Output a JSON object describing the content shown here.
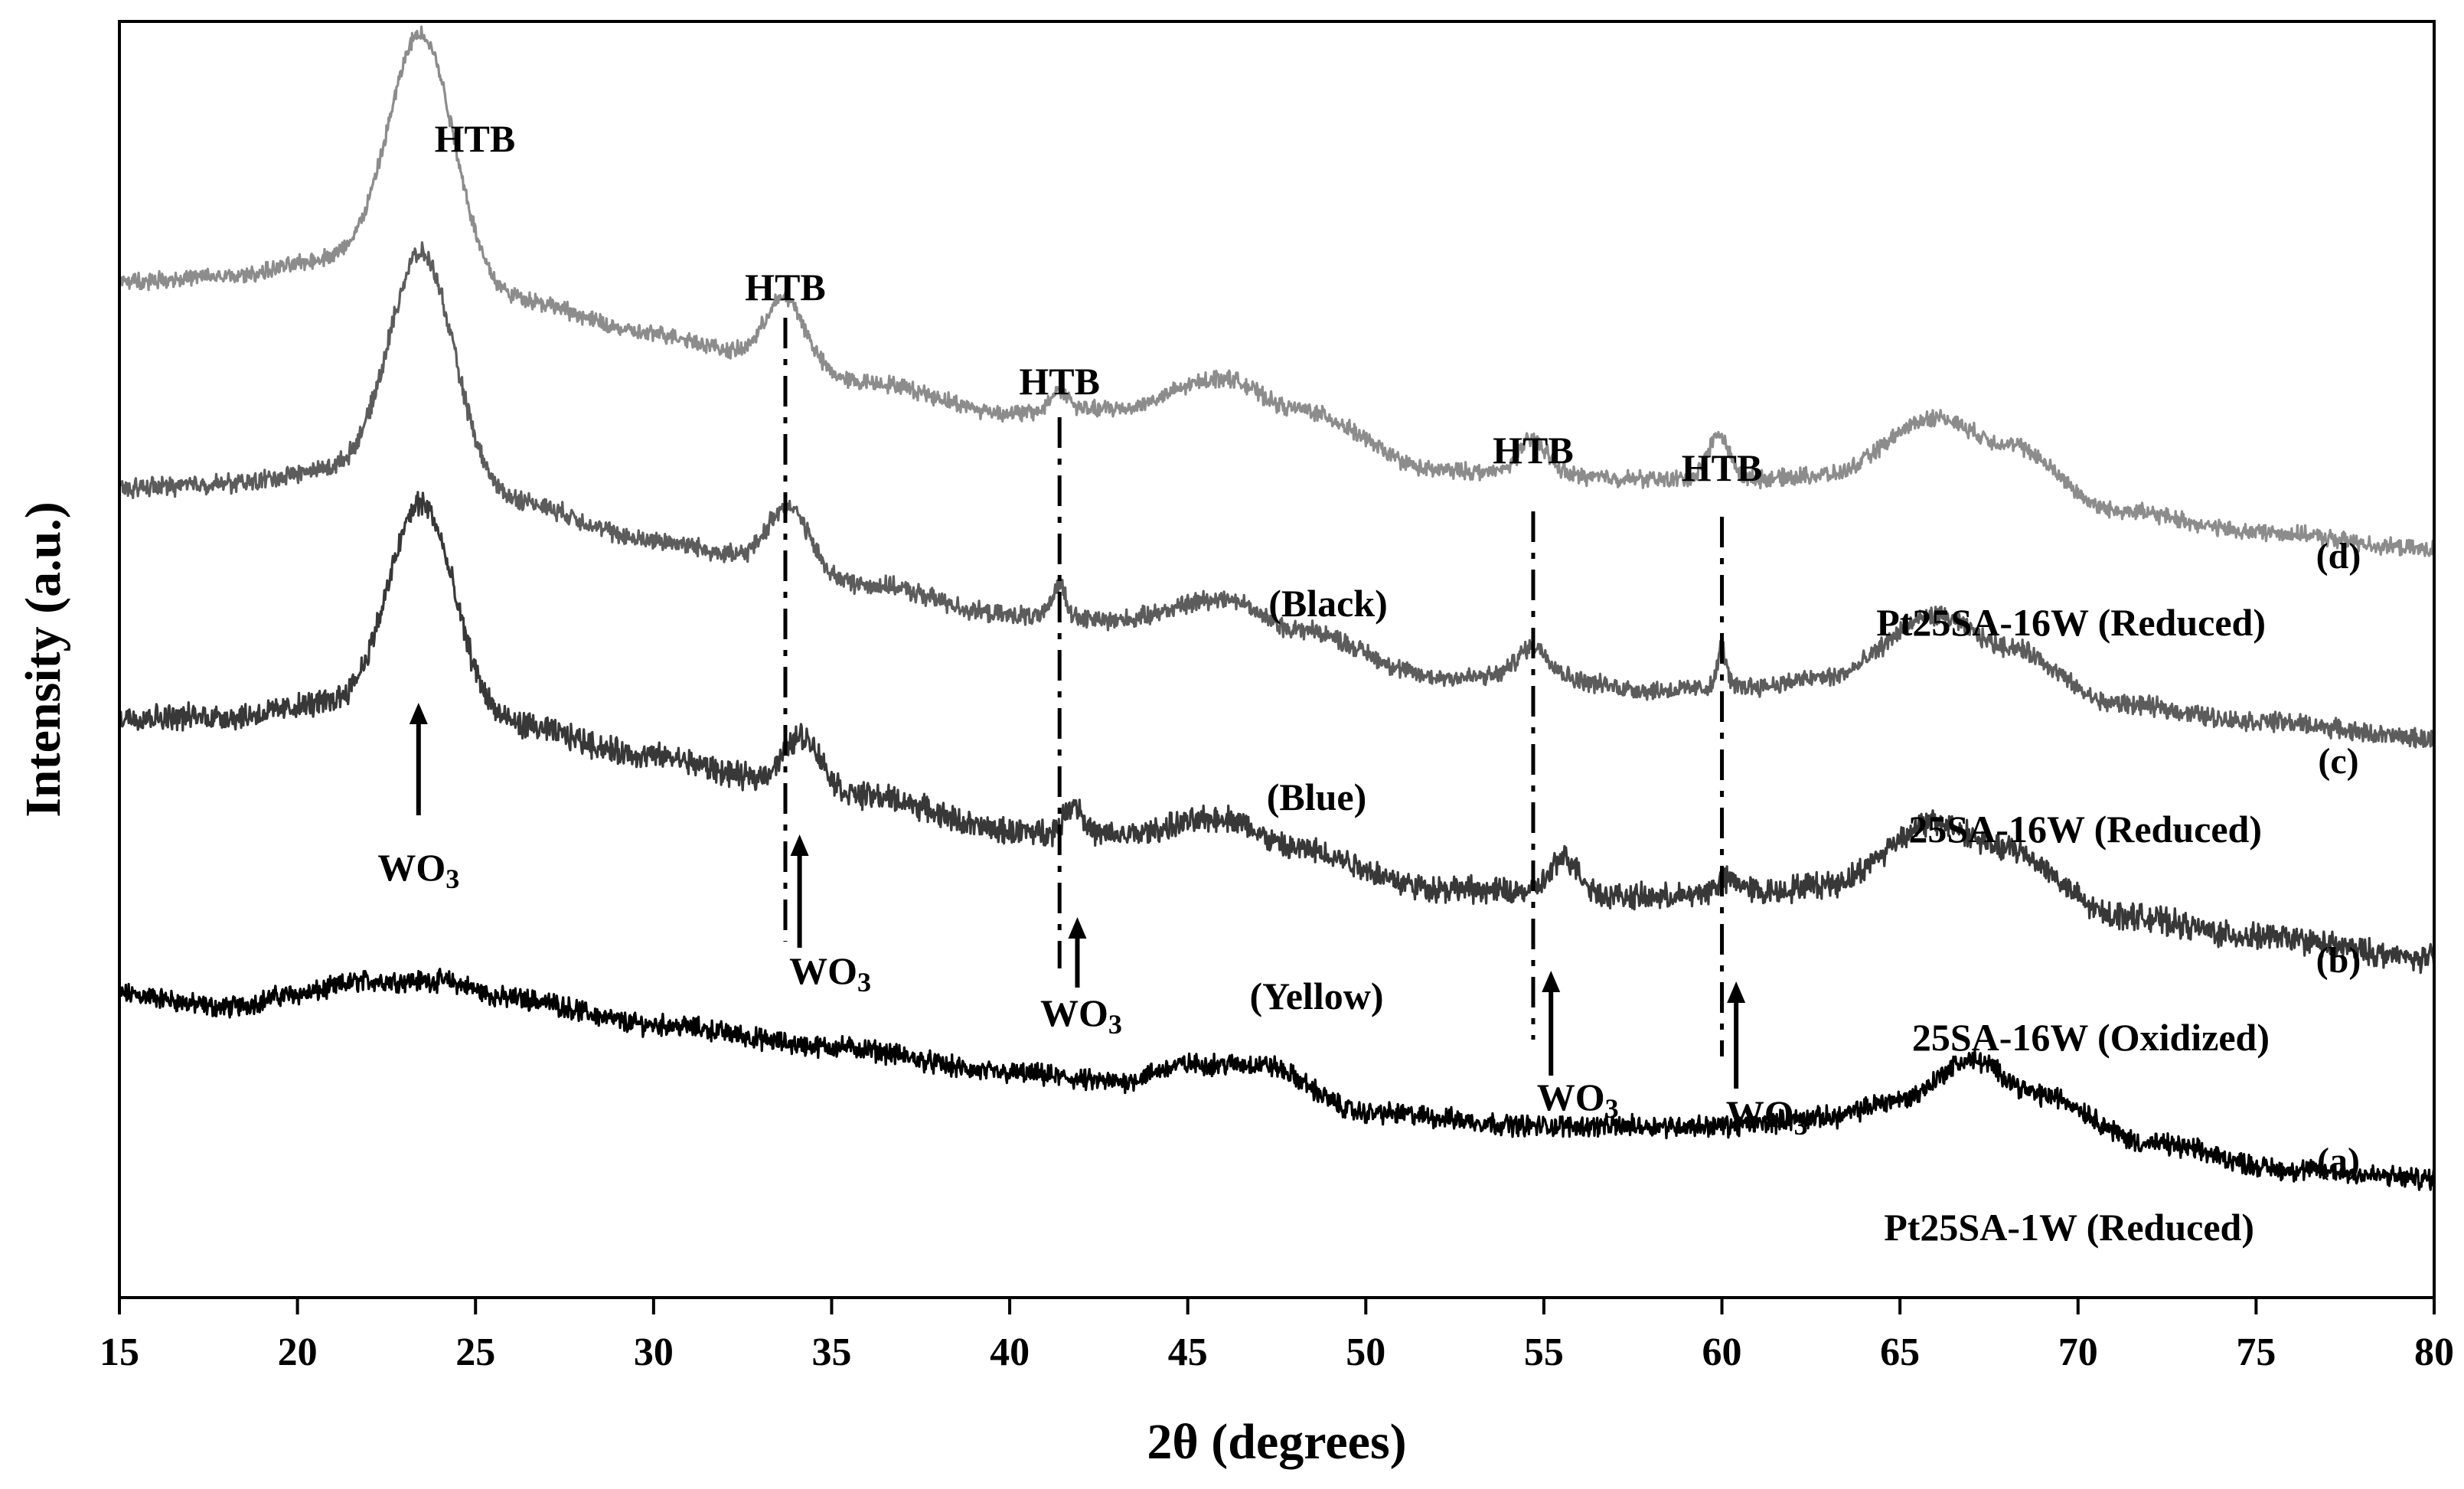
{
  "chart_data": {
    "type": "line",
    "title": "",
    "xlabel": "2θ (degrees)",
    "ylabel": "Intensity (a.u.)",
    "xlim": [
      15,
      80
    ],
    "x_ticks": [
      15,
      20,
      25,
      30,
      35,
      40,
      45,
      50,
      55,
      60,
      65,
      70,
      75,
      80
    ],
    "y_ticks_shown": false,
    "series": [
      {
        "id": "a",
        "letter": "(a)",
        "name": "Pt25SA-1W (Reduced)",
        "color_label": "",
        "color": "#000000",
        "noise": 0.18,
        "baseline": [
          [
            15,
            3.45
          ],
          [
            18,
            3.3
          ],
          [
            20,
            3.45
          ],
          [
            22,
            3.6
          ],
          [
            24,
            3.6
          ],
          [
            26,
            3.4
          ],
          [
            30,
            3.1
          ],
          [
            35,
            2.85
          ],
          [
            40,
            2.55
          ],
          [
            43,
            2.45
          ],
          [
            45,
            2.65
          ],
          [
            47,
            2.65
          ],
          [
            50,
            2.1
          ],
          [
            55,
            1.95
          ],
          [
            60,
            1.95
          ],
          [
            63,
            2.05
          ],
          [
            65,
            2.25
          ],
          [
            67,
            2.7
          ],
          [
            69,
            2.3
          ],
          [
            72,
            1.75
          ],
          [
            76,
            1.45
          ],
          [
            80,
            1.35
          ]
        ],
        "peaks": []
      },
      {
        "id": "b",
        "letter": "(b)",
        "name": "25SA-16W (Oxidized)",
        "color_label": "(Yellow)",
        "color": "#383838",
        "noise": 0.22,
        "baseline": [
          [
            15,
            6.6
          ],
          [
            18,
            6.6
          ],
          [
            21,
            6.75
          ],
          [
            23,
            6.85
          ],
          [
            26,
            6.5
          ],
          [
            30,
            6.15
          ],
          [
            33,
            5.9
          ],
          [
            36,
            5.7
          ],
          [
            40,
            5.3
          ],
          [
            43,
            5.25
          ],
          [
            46,
            5.45
          ],
          [
            48,
            5.1
          ],
          [
            52,
            4.65
          ],
          [
            55,
            4.6
          ],
          [
            58,
            4.55
          ],
          [
            61,
            4.6
          ],
          [
            63,
            4.7
          ],
          [
            66,
            5.4
          ],
          [
            68,
            5.1
          ],
          [
            71,
            4.35
          ],
          [
            75,
            4.1
          ],
          [
            80,
            3.85
          ]
        ],
        "peaks": [
          [
            23.5,
            2.2,
            0.9
          ],
          [
            34.2,
            0.55,
            0.5
          ],
          [
            41.8,
            0.35,
            0.25
          ],
          [
            55.6,
            0.4,
            0.4
          ],
          [
            60.2,
            0.15,
            0.4
          ]
        ]
      },
      {
        "id": "c",
        "letter": "(c)",
        "name": "25SA-16W (Reduced)",
        "color_label": "(Blue)",
        "color": "#5c5c5c",
        "noise": 0.16,
        "baseline": [
          [
            15,
            9.2
          ],
          [
            18,
            9.25
          ],
          [
            21,
            9.4
          ],
          [
            23,
            9.5
          ],
          [
            26,
            9.05
          ],
          [
            30,
            8.6
          ],
          [
            33,
            8.4
          ],
          [
            36,
            8.1
          ],
          [
            40,
            7.75
          ],
          [
            43,
            7.7
          ],
          [
            46,
            7.95
          ],
          [
            48,
            7.6
          ],
          [
            52,
            7.05
          ],
          [
            55,
            7.05
          ],
          [
            58,
            6.9
          ],
          [
            61,
            6.95
          ],
          [
            63,
            7.05
          ],
          [
            66,
            7.75
          ],
          [
            68,
            7.4
          ],
          [
            71,
            6.75
          ],
          [
            75,
            6.55
          ],
          [
            80,
            6.35
          ]
        ],
        "peaks": [
          [
            23.5,
            2.4,
            0.9
          ],
          [
            33.8,
            0.65,
            0.55
          ],
          [
            41.4,
            0.4,
            0.18
          ],
          [
            54.7,
            0.35,
            0.45
          ],
          [
            60,
            0.45,
            0.12
          ]
        ]
      },
      {
        "id": "d",
        "letter": "(d)",
        "name": "Pt25SA-16W (Reduced)",
        "color_label": "(Black)",
        "color": "#8c8c8c",
        "noise": 0.14,
        "baseline": [
          [
            15,
            11.55
          ],
          [
            18,
            11.6
          ],
          [
            21,
            11.8
          ],
          [
            23,
            11.9
          ],
          [
            26,
            11.35
          ],
          [
            30,
            10.95
          ],
          [
            33,
            10.7
          ],
          [
            36,
            10.4
          ],
          [
            40,
            10.05
          ],
          [
            43,
            10.1
          ],
          [
            46,
            10.45
          ],
          [
            48,
            10.1
          ],
          [
            52,
            9.4
          ],
          [
            55,
            9.35
          ],
          [
            58,
            9.3
          ],
          [
            61,
            9.3
          ],
          [
            63,
            9.35
          ],
          [
            66,
            10.0
          ],
          [
            68,
            9.7
          ],
          [
            71,
            8.95
          ],
          [
            75,
            8.7
          ],
          [
            80,
            8.5
          ]
        ],
        "peaks": [
          [
            23.5,
            2.5,
            0.9
          ],
          [
            33.7,
            0.7,
            0.55
          ],
          [
            41.4,
            0.25,
            0.25
          ],
          [
            54.7,
            0.4,
            0.4
          ],
          [
            59.9,
            0.5,
            0.3
          ]
        ]
      }
    ],
    "annotations": {
      "peak_label": "HTB",
      "wo3_text": "WO",
      "wo3_subscript": "3",
      "htb_markers": [
        {
          "x": 33.7,
          "label_shown": true
        },
        {
          "x": 41.4,
          "label_shown": true
        },
        {
          "x": 54.7,
          "label_shown": true
        },
        {
          "x": 60.0,
          "label_shown": true
        }
      ],
      "htb_top_peak": {
        "x": 23.8,
        "label": "HTB"
      },
      "wo3_arrows": [
        {
          "x": 23.4
        },
        {
          "x": 34.1
        },
        {
          "x": 41.9
        },
        {
          "x": 55.2
        },
        {
          "x": 60.4
        }
      ]
    }
  }
}
